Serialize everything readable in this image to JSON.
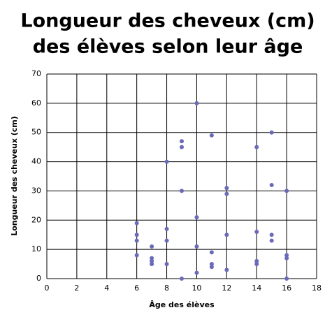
{
  "chart_data": {
    "type": "scatter",
    "title": [
      "Longueur des cheveux (cm)",
      "des élèves selon leur âge"
    ],
    "x_label": "Âge des élèves",
    "y_label": "Longueur des cheveux (cm)",
    "x": [
      6,
      6,
      6,
      6,
      7,
      7,
      7,
      7,
      8,
      8,
      8,
      8,
      9,
      9,
      9,
      9,
      10,
      10,
      10,
      10,
      11,
      11,
      11,
      11,
      12,
      12,
      12,
      12,
      14,
      14,
      14,
      14,
      15,
      15,
      15,
      15,
      16,
      16,
      16,
      16
    ],
    "y": [
      19,
      15,
      13,
      8,
      11,
      7,
      6,
      5,
      40,
      17,
      13,
      5,
      47,
      45,
      30,
      0,
      60,
      21,
      11,
      2,
      49,
      9,
      5,
      4,
      31,
      29,
      15,
      3,
      45,
      16,
      6,
      5,
      50,
      32,
      15,
      13,
      30,
      8,
      7,
      0
    ],
    "color": "#6a6ab8",
    "xlim": [
      0,
      18
    ],
    "xticks": [
      0,
      2,
      4,
      6,
      8,
      10,
      12,
      14,
      16,
      18
    ],
    "ylim": [
      0,
      70
    ],
    "yticks": [
      0,
      10,
      20,
      30,
      40,
      50,
      60,
      70
    ],
    "grid": true
  }
}
